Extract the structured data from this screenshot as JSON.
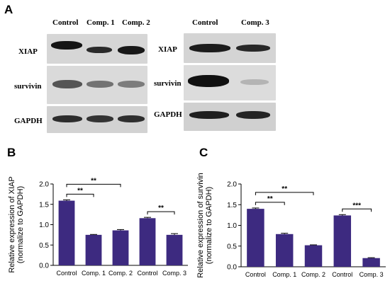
{
  "panels": {
    "a": "A",
    "b": "B",
    "c": "C"
  },
  "blots": {
    "left": {
      "lanes": [
        "Control",
        "Comp. 1",
        "Comp. 2"
      ],
      "rows": [
        "XIAP",
        "survivin",
        "GAPDH"
      ]
    },
    "right": {
      "lanes": [
        "Control",
        "Comp. 3"
      ],
      "rows": [
        "XIAP",
        "survivin",
        "GAPDH"
      ]
    }
  },
  "chart_data": [
    {
      "type": "bar",
      "panel": "B",
      "categories": [
        "Control",
        "Comp. 1",
        "Comp. 2",
        "Control",
        "Comp. 3"
      ],
      "values": [
        1.59,
        0.75,
        0.86,
        1.16,
        0.75
      ],
      "errors": [
        0.02,
        0.01,
        0.02,
        0.02,
        0.03
      ],
      "ylabel": "Relative  expression of XIAP\n(normalize to GAPDH)",
      "ylim": [
        0,
        2.0
      ],
      "yticks": [
        "0.0",
        "0.5",
        "1.0",
        "1.5",
        "2.0"
      ],
      "bar_color": "#3d2a80",
      "significance": [
        {
          "from": 0,
          "to": 1,
          "label": "**"
        },
        {
          "from": 0,
          "to": 2,
          "label": "**"
        },
        {
          "from": 3,
          "to": 4,
          "label": "**"
        }
      ]
    },
    {
      "type": "bar",
      "panel": "C",
      "categories": [
        "Control",
        "Comp. 1",
        "Comp. 2",
        "Control",
        "Comp. 3"
      ],
      "values": [
        1.4,
        0.79,
        0.52,
        1.24,
        0.21
      ],
      "errors": [
        0.02,
        0.02,
        0.01,
        0.02,
        0.01
      ],
      "ylabel": "Relative  expression of survivin\n(normalize to GAPDH)",
      "ylim": [
        0,
        2.0
      ],
      "yticks": [
        "0.0",
        "0.5",
        "1.0",
        "1.5",
        "2.0"
      ],
      "bar_color": "#3d2a80",
      "significance": [
        {
          "from": 0,
          "to": 1,
          "label": "**"
        },
        {
          "from": 0,
          "to": 2,
          "label": "**"
        },
        {
          "from": 3,
          "to": 4,
          "label": "***"
        }
      ]
    }
  ]
}
